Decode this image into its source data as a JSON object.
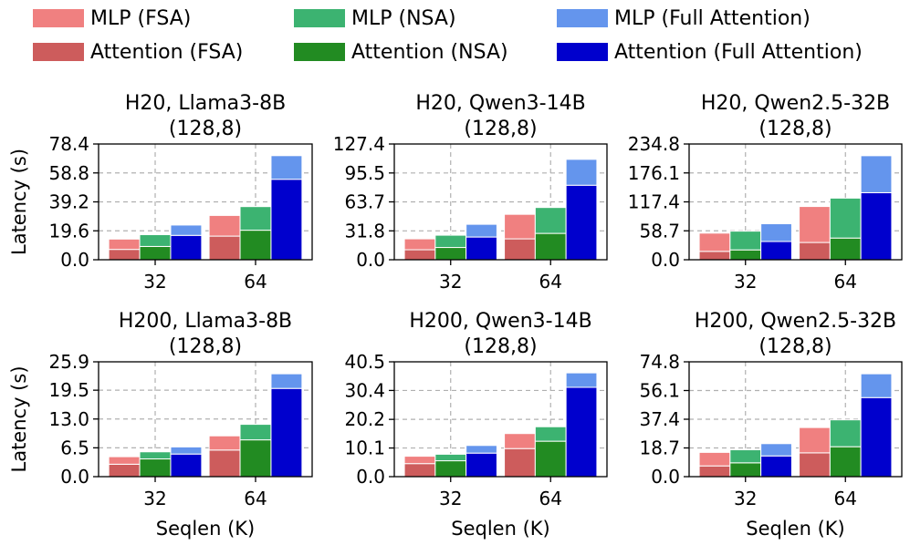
{
  "legend": {
    "items": [
      {
        "label": "MLP (FSA)",
        "color": "#f08080"
      },
      {
        "label": "Attention (FSA)",
        "color": "#cd5c5c"
      },
      {
        "label": "MLP (NSA)",
        "color": "#3cb371"
      },
      {
        "label": "Attention (NSA)",
        "color": "#228b22"
      },
      {
        "label": "MLP (Full Attention)",
        "color": "#6495ed"
      },
      {
        "label": "Attention (Full Attention)",
        "color": "#0000cd"
      }
    ]
  },
  "chart_data": [
    {
      "type": "bar",
      "stacked": true,
      "title": [
        "H20, Llama3-8B",
        "(128,8)"
      ],
      "xlabel": "",
      "ylabel": "Latency (s)",
      "categories": [
        "32",
        "64"
      ],
      "yticks": [
        "0.0",
        "19.6",
        "39.2",
        "58.8",
        "78.4"
      ],
      "ylim": [
        0,
        78.4
      ],
      "groups": [
        {
          "name": "FSA",
          "attention": [
            7,
            16
          ],
          "mlp": [
            7,
            14
          ]
        },
        {
          "name": "NSA",
          "attention": [
            9,
            20
          ],
          "mlp": [
            8,
            16
          ]
        },
        {
          "name": "Full Attention",
          "attention": [
            16.5,
            54.5
          ],
          "mlp": [
            7,
            16
          ]
        }
      ]
    },
    {
      "type": "bar",
      "stacked": true,
      "title": [
        "H20, Qwen3-14B",
        "(128,8)"
      ],
      "xlabel": "",
      "ylabel": "",
      "categories": [
        "32",
        "64"
      ],
      "yticks": [
        "0.0",
        "31.8",
        "63.7",
        "95.5",
        "127.4"
      ],
      "ylim": [
        0,
        127.4
      ],
      "groups": [
        {
          "name": "FSA",
          "attention": [
            11,
            23
          ],
          "mlp": [
            12,
            27
          ]
        },
        {
          "name": "NSA",
          "attention": [
            13.5,
            29
          ],
          "mlp": [
            13.5,
            28.5
          ]
        },
        {
          "name": "Full Attention",
          "attention": [
            25,
            82
          ],
          "mlp": [
            14,
            28.5
          ]
        }
      ]
    },
    {
      "type": "bar",
      "stacked": true,
      "title": [
        "H20, Qwen2.5-32B",
        "(128,8)"
      ],
      "xlabel": "",
      "ylabel": "",
      "categories": [
        "32",
        "64"
      ],
      "yticks": [
        "0.0",
        "58.7",
        "117.4",
        "176.1",
        "234.8"
      ],
      "ylim": [
        0,
        234.8
      ],
      "groups": [
        {
          "name": "FSA",
          "attention": [
            17,
            35
          ],
          "mlp": [
            37,
            73
          ]
        },
        {
          "name": "NSA",
          "attention": [
            20,
            44
          ],
          "mlp": [
            38,
            81
          ]
        },
        {
          "name": "Full Attention",
          "attention": [
            37,
            136
          ],
          "mlp": [
            36,
            75
          ]
        }
      ]
    },
    {
      "type": "bar",
      "stacked": true,
      "title": [
        "H200, Llama3-8B",
        "(128,8)"
      ],
      "xlabel": "Seqlen (K)",
      "ylabel": "Latency (s)",
      "categories": [
        "32",
        "64"
      ],
      "yticks": [
        "0.0",
        "6.5",
        "13.0",
        "19.5",
        "25.9"
      ],
      "ylim": [
        0,
        25.9
      ],
      "groups": [
        {
          "name": "FSA",
          "attention": [
            2.8,
            6.0
          ],
          "mlp": [
            1.7,
            3.2
          ]
        },
        {
          "name": "NSA",
          "attention": [
            4.0,
            8.3
          ],
          "mlp": [
            1.6,
            3.5
          ]
        },
        {
          "name": "Full Attention",
          "attention": [
            5.1,
            19.9
          ],
          "mlp": [
            1.6,
            3.3
          ]
        }
      ]
    },
    {
      "type": "bar",
      "stacked": true,
      "title": [
        "H200, Qwen3-14B",
        "(128,8)"
      ],
      "xlabel": "Seqlen (K)",
      "ylabel": "",
      "categories": [
        "32",
        "64"
      ],
      "yticks": [
        "0.0",
        "10.1",
        "20.2",
        "30.4",
        "40.5"
      ],
      "ylim": [
        0,
        40.5
      ],
      "groups": [
        {
          "name": "FSA",
          "attention": [
            4.6,
            9.9
          ],
          "mlp": [
            2.6,
            5.3
          ]
        },
        {
          "name": "NSA",
          "attention": [
            5.6,
            12.5
          ],
          "mlp": [
            2.3,
            5.1
          ]
        },
        {
          "name": "Full Attention",
          "attention": [
            8.3,
            31.5
          ],
          "mlp": [
            2.7,
            5.1
          ]
        }
      ]
    },
    {
      "type": "bar",
      "stacked": true,
      "title": [
        "H200, Qwen2.5-32B",
        "(128,8)"
      ],
      "xlabel": "Seqlen (K)",
      "ylabel": "",
      "categories": [
        "32",
        "64"
      ],
      "yticks": [
        "0.0",
        "18.7",
        "37.4",
        "56.1",
        "74.8"
      ],
      "ylim": [
        0,
        74.8
      ],
      "groups": [
        {
          "name": "FSA",
          "attention": [
            7.0,
            15.5
          ],
          "mlp": [
            8.8,
            16.5
          ]
        },
        {
          "name": "NSA",
          "attention": [
            9.0,
            19.5
          ],
          "mlp": [
            8.5,
            17.5
          ]
        },
        {
          "name": "Full Attention",
          "attention": [
            13.5,
            51.5
          ],
          "mlp": [
            8.0,
            15.5
          ]
        }
      ]
    }
  ]
}
